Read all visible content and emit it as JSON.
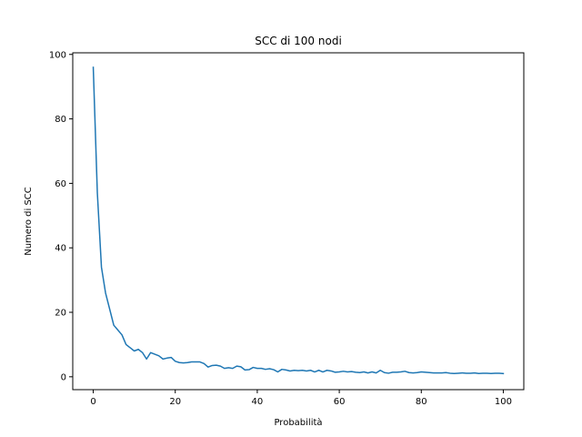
{
  "chart_data": {
    "type": "line",
    "title": "SCC di 100 nodi",
    "xlabel": "Probabilità",
    "ylabel": "Numero di SCC",
    "xlim": [
      -5,
      105
    ],
    "ylim": [
      -4,
      100.5
    ],
    "xticks": [
      0,
      20,
      40,
      60,
      80,
      100
    ],
    "yticks": [
      0,
      20,
      40,
      60,
      80,
      100
    ],
    "grid": false,
    "series": [
      {
        "color": "#1f77b4",
        "x": [
          0,
          1,
          2,
          3,
          4,
          5,
          6,
          7,
          8,
          9,
          10,
          11,
          12,
          13,
          14,
          15,
          16,
          17,
          18,
          19,
          20,
          21,
          22,
          23,
          24,
          25,
          26,
          27,
          28,
          29,
          30,
          31,
          32,
          33,
          34,
          35,
          36,
          37,
          38,
          39,
          40,
          41,
          42,
          43,
          44,
          45,
          46,
          47,
          48,
          49,
          50,
          51,
          52,
          53,
          54,
          55,
          56,
          57,
          58,
          59,
          60,
          61,
          62,
          63,
          64,
          65,
          66,
          67,
          68,
          69,
          70,
          71,
          72,
          73,
          74,
          75,
          76,
          77,
          78,
          79,
          80,
          81,
          82,
          83,
          84,
          85,
          86,
          87,
          88,
          89,
          90,
          91,
          92,
          93,
          94,
          95,
          96,
          97,
          98,
          99,
          100
        ],
        "values": [
          96,
          57,
          34,
          26,
          21,
          16,
          14.5,
          13,
          10,
          9,
          8,
          8.5,
          7.5,
          5.5,
          7.5,
          7,
          6.5,
          5.5,
          5.8,
          6,
          4.8,
          4.4,
          4.3,
          4.4,
          4.6,
          4.6,
          4.6,
          4.1,
          3,
          3.5,
          3.6,
          3.3,
          2.6,
          2.8,
          2.6,
          3.3,
          3.1,
          2.1,
          2.2,
          2.9,
          2.6,
          2.6,
          2.3,
          2.5,
          2.2,
          1.5,
          2.3,
          2.1,
          1.8,
          2,
          1.9,
          2,
          1.8,
          2,
          1.5,
          2,
          1.5,
          2,
          1.8,
          1.4,
          1.5,
          1.7,
          1.5,
          1.6,
          1.4,
          1.3,
          1.5,
          1.2,
          1.5,
          1.2,
          2,
          1.3,
          1.1,
          1.4,
          1.4,
          1.5,
          1.7,
          1.3,
          1.2,
          1.3,
          1.5,
          1.4,
          1.3,
          1.2,
          1.2,
          1.2,
          1.3,
          1.1,
          1,
          1.1,
          1.2,
          1.1,
          1.1,
          1.2,
          1,
          1.1,
          1.1,
          1,
          1.1,
          1.1,
          1
        ]
      }
    ]
  }
}
